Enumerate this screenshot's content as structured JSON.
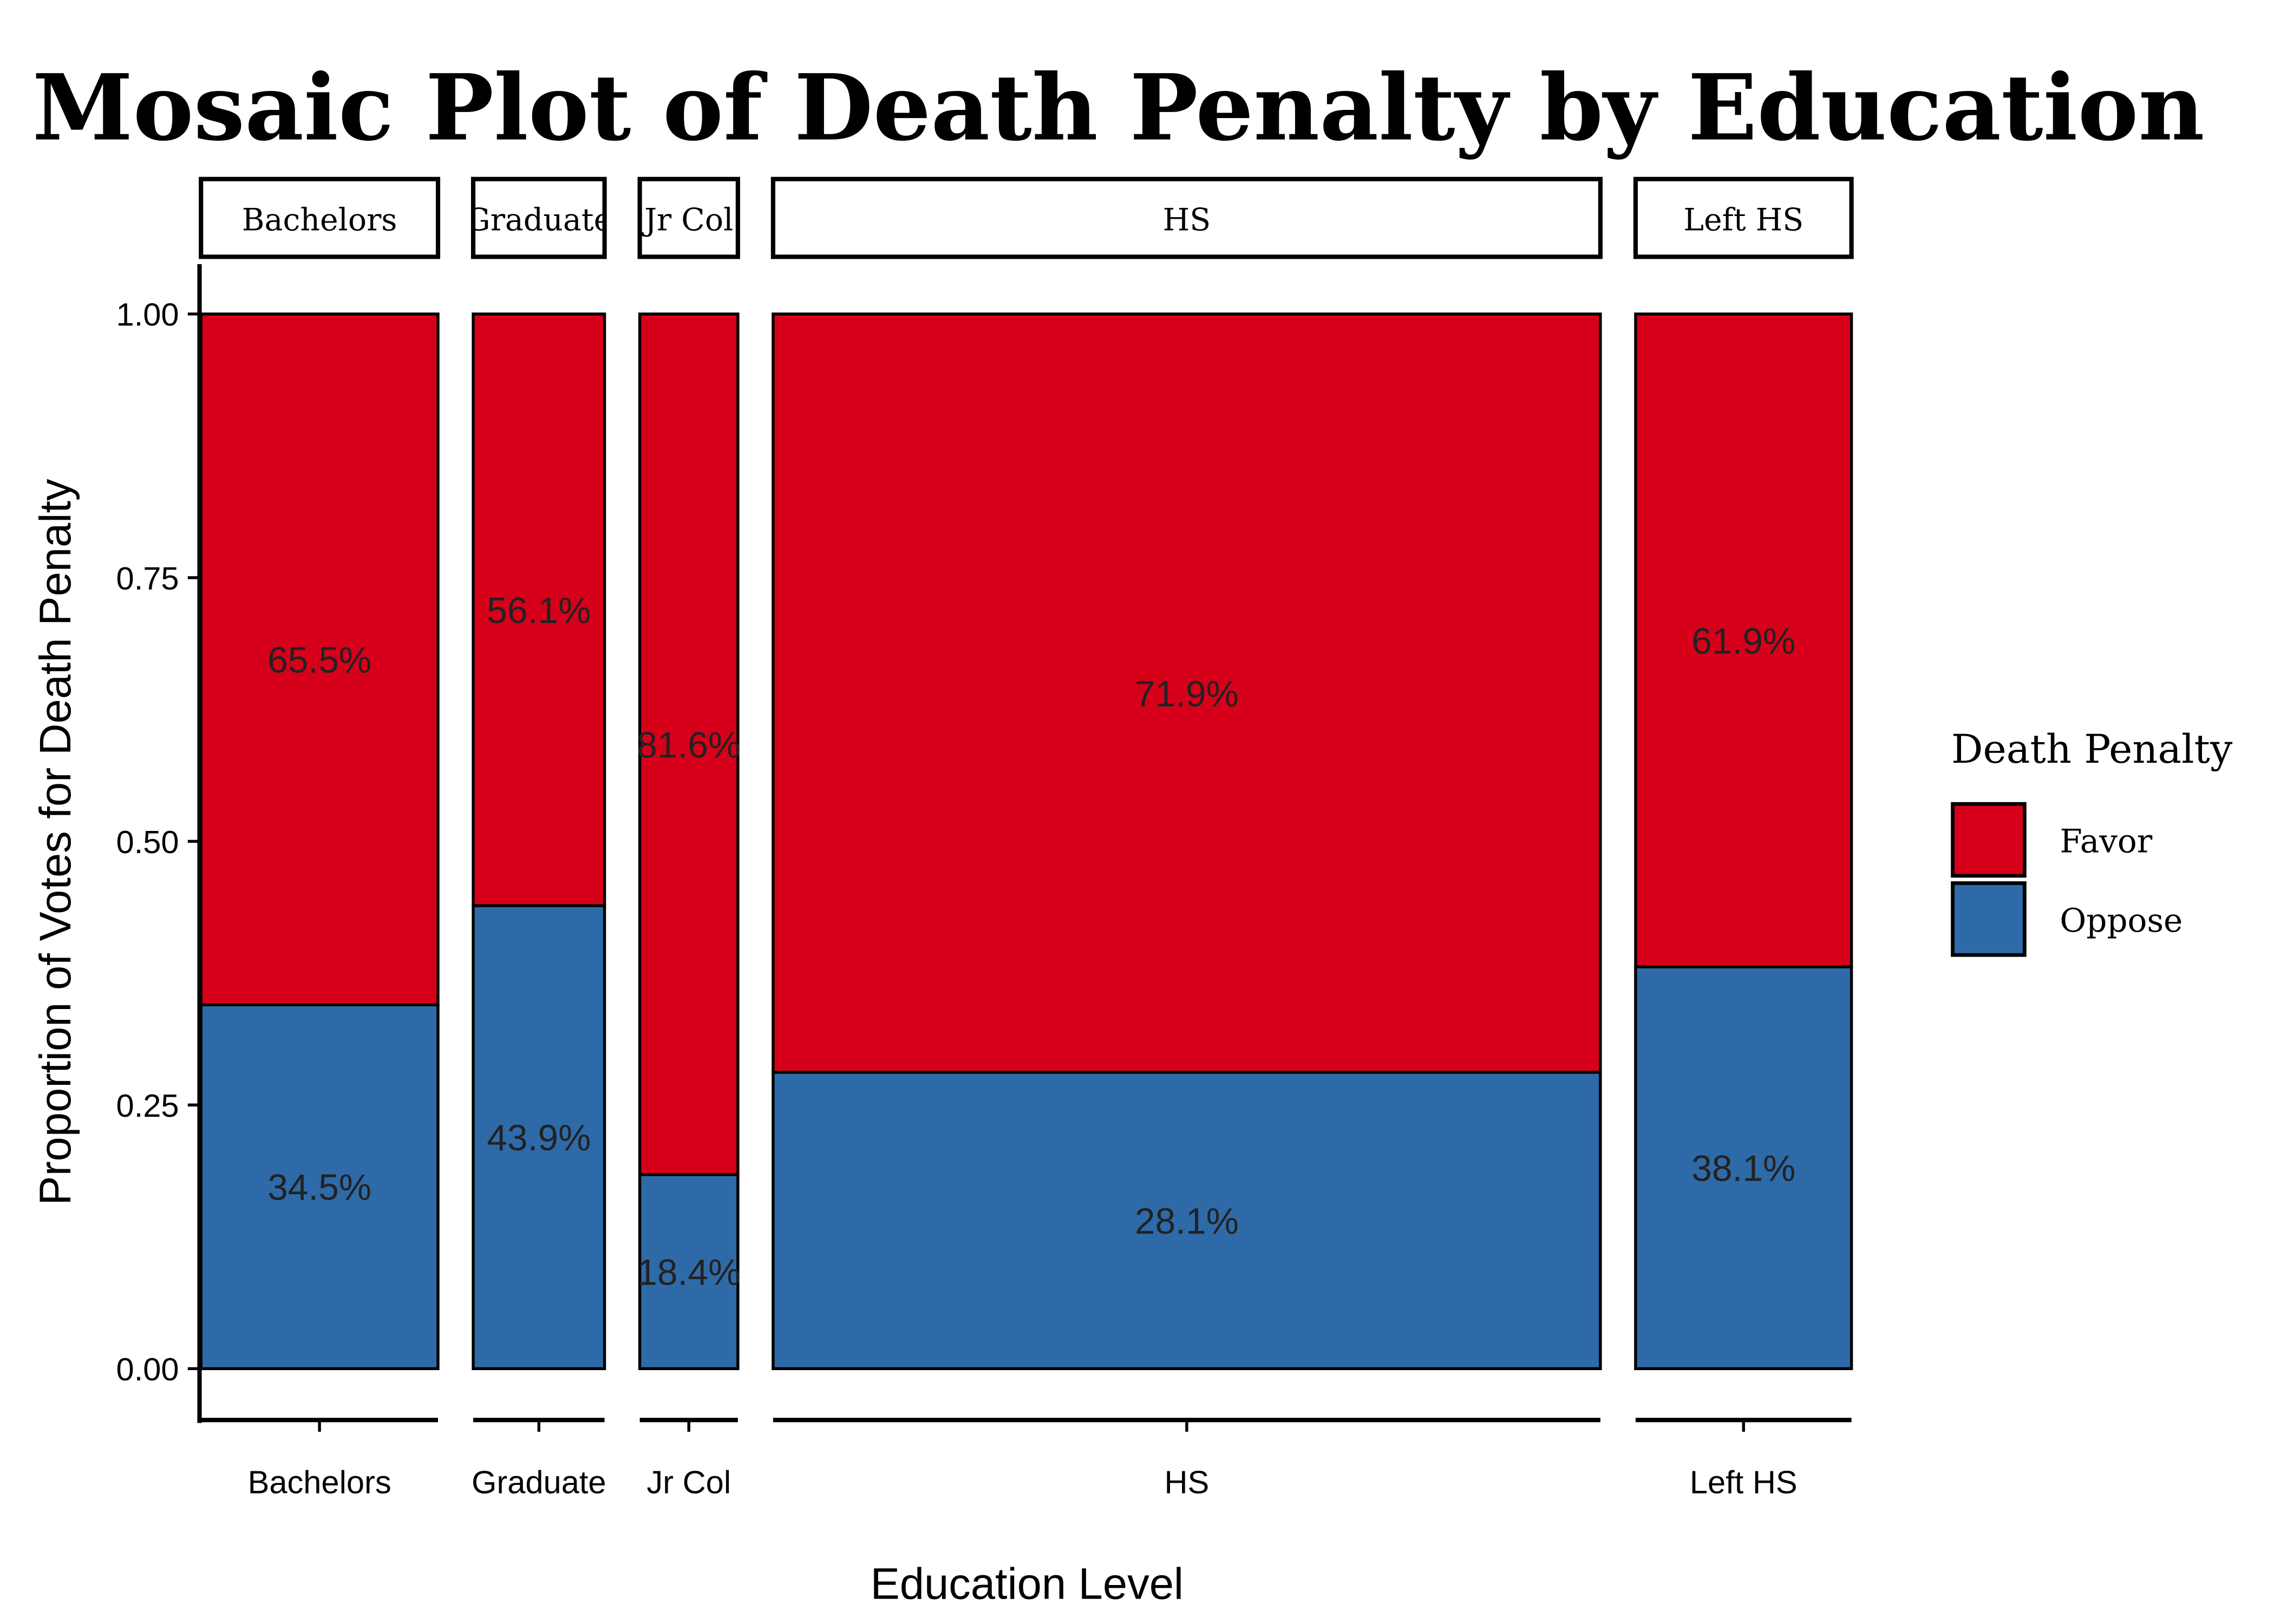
{
  "chart_data": {
    "type": "mosaic",
    "title": "Mosaic Plot of Death Penalty by Education",
    "xlabel": "Education Level",
    "ylabel": "Proportion of Votes for Death Penalty",
    "ylim": [
      0,
      1
    ],
    "yticks": [
      "0.00",
      "0.25",
      "0.50",
      "0.75",
      "1.00"
    ],
    "categories": [
      "Bachelors",
      "Graduate",
      "Jr Col",
      "HS",
      "Left HS"
    ],
    "category_share": [
      0.157,
      0.087,
      0.065,
      0.548,
      0.143
    ],
    "series": [
      {
        "name": "Favor",
        "color": "#d7001a",
        "values": [
          0.655,
          0.561,
          0.816,
          0.719,
          0.619
        ],
        "labels": [
          "65.5%",
          "56.1%",
          "81.6%",
          "71.9%",
          "61.9%"
        ]
      },
      {
        "name": "Oppose",
        "color": "#2e6aa8",
        "values": [
          0.345,
          0.439,
          0.184,
          0.281,
          0.381
        ],
        "labels": [
          "34.5%",
          "43.9%",
          "18.4%",
          "28.1%",
          "38.1%"
        ]
      }
    ],
    "legend": {
      "title": "Death Penalty",
      "placement": "right"
    }
  }
}
